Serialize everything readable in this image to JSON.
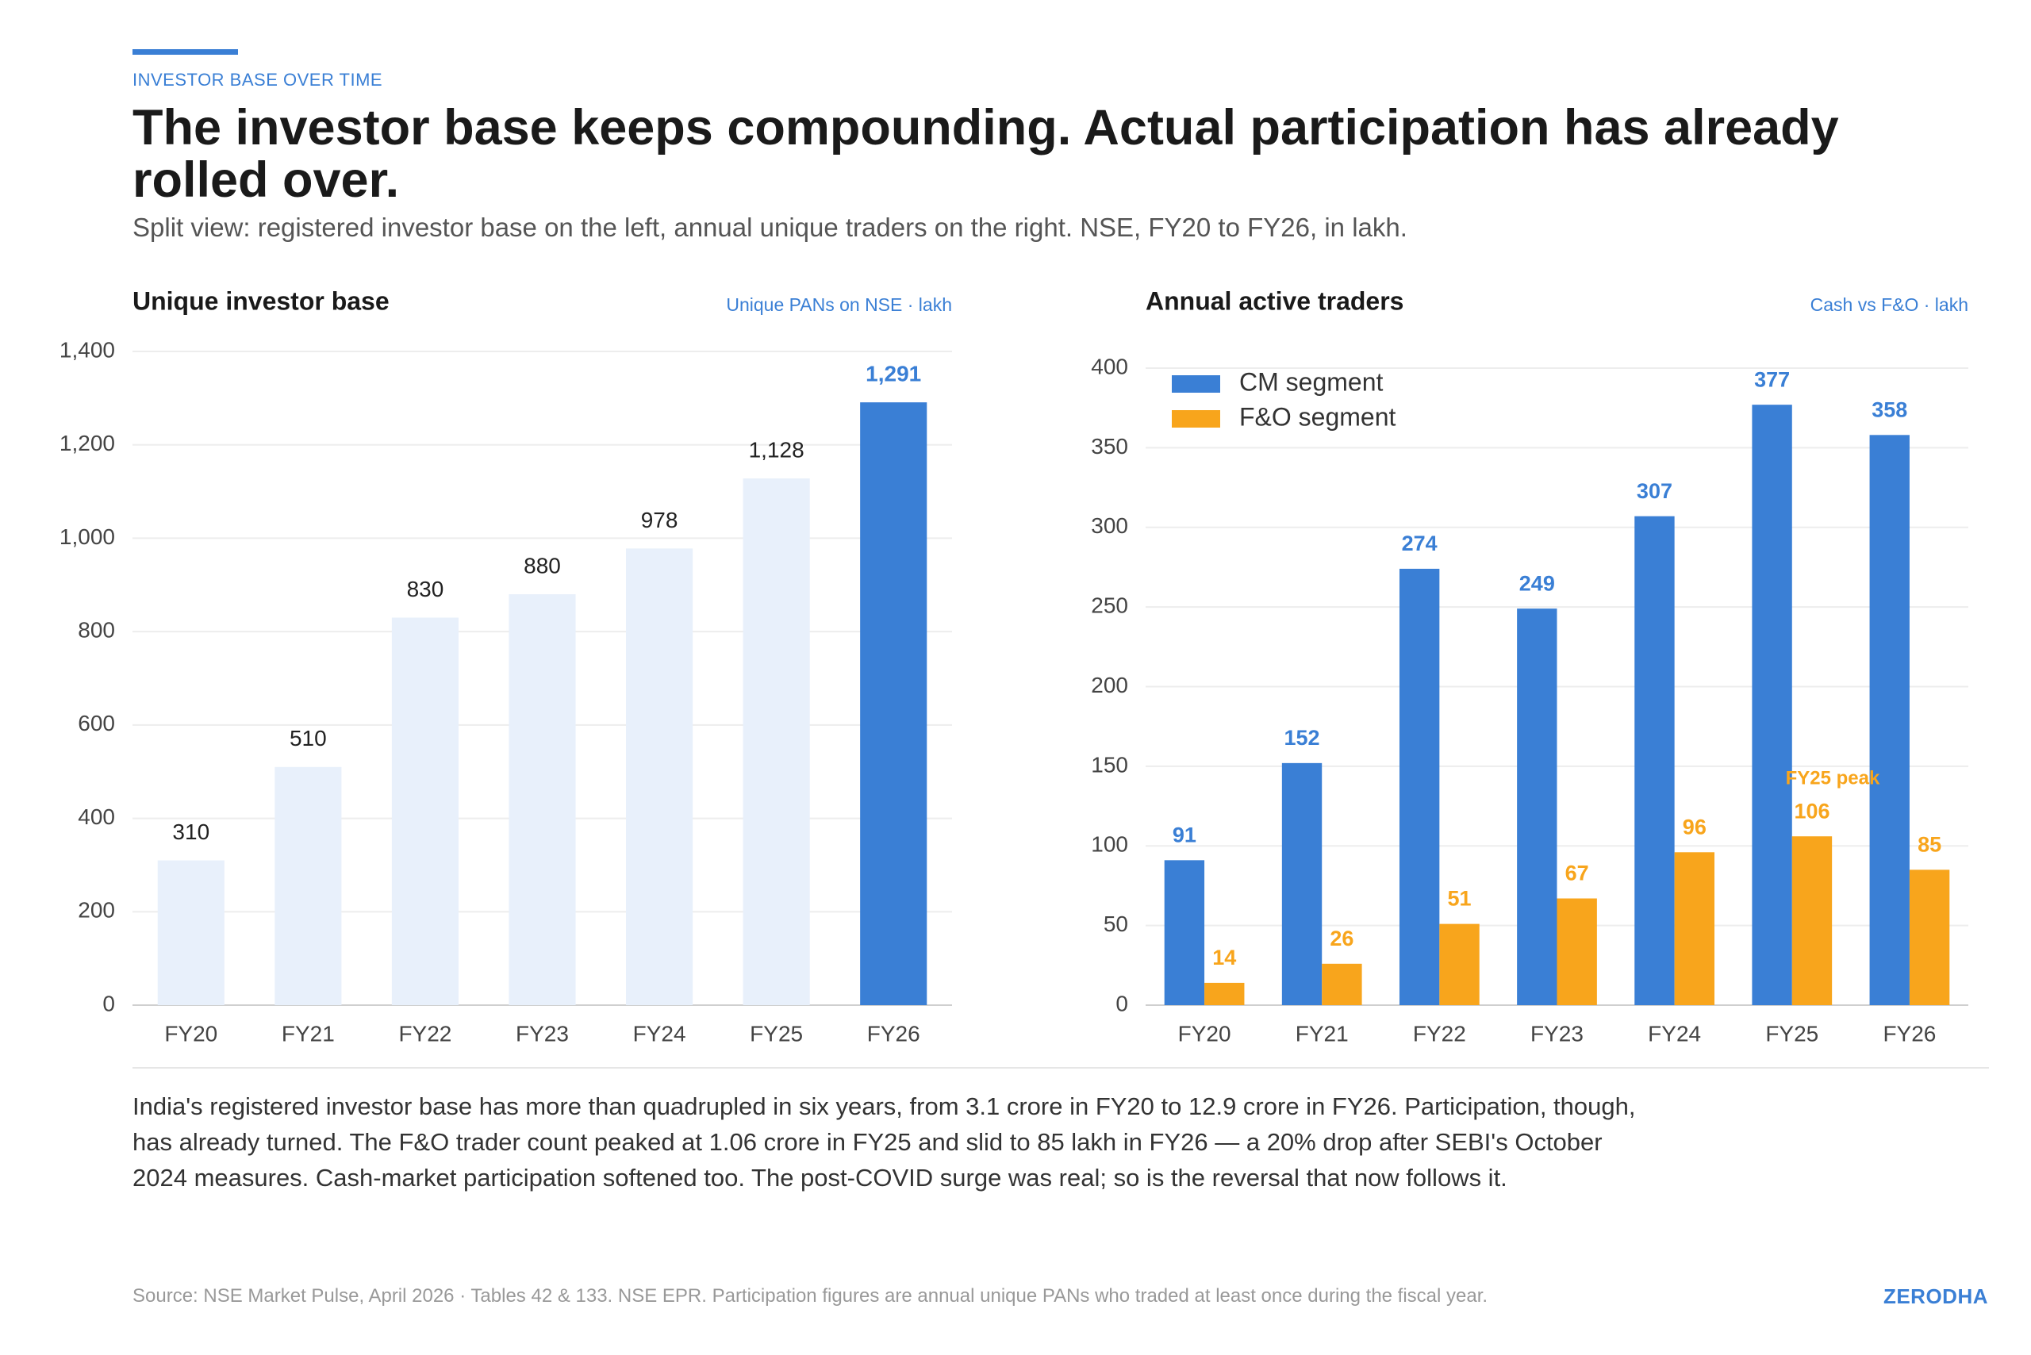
{
  "header": {
    "eyebrow": "INVESTOR BASE OVER TIME",
    "title": "The investor base keeps compounding. Actual participation has already rolled over.",
    "subtitle": "Split view: registered investor base on the left, annual unique traders on the right. NSE, FY20 to FY26, in lakh."
  },
  "chart_data": [
    {
      "type": "bar",
      "title": "Unique investor base",
      "subtitle": "Unique PANs on NSE · lakh",
      "categories": [
        "FY20",
        "FY21",
        "FY22",
        "FY23",
        "FY24",
        "FY25",
        "FY26"
      ],
      "values": [
        310,
        510,
        830,
        880,
        978,
        1128,
        1291
      ],
      "value_labels": [
        "310",
        "510",
        "830",
        "880",
        "978",
        "1,128",
        "1,291"
      ],
      "colors": [
        "#e8f0fb",
        "#e8f0fb",
        "#e8f0fb",
        "#e8f0fb",
        "#e8f0fb",
        "#e8f0fb",
        "#3a7fd5"
      ],
      "ylim": [
        0,
        1400
      ],
      "yticks": [
        0,
        200,
        400,
        600,
        800,
        {
          "value": 1000,
          "label": "1,000"
        },
        {
          "value": 1200,
          "label": "1,200"
        },
        {
          "value": 1400,
          "label": "1,400"
        }
      ],
      "grid": true
    },
    {
      "type": "grouped_bar",
      "title": "Annual active traders",
      "subtitle": "Cash vs F&O · lakh",
      "categories": [
        "FY20",
        "FY21",
        "FY22",
        "FY23",
        "FY24",
        "FY25",
        "FY26"
      ],
      "series": [
        {
          "name": "CM segment",
          "color": "#3a7fd5",
          "values": [
            91,
            152,
            274,
            249,
            307,
            377,
            358
          ]
        },
        {
          "name": "F&O segment",
          "color": "#f8a51c",
          "values": [
            14,
            26,
            51,
            67,
            96,
            106,
            85
          ]
        }
      ],
      "annotations": [
        {
          "text": "FY25 peak",
          "series": 1,
          "category": 5
        }
      ],
      "ylim": [
        0,
        400
      ],
      "yticks": [
        0,
        50,
        100,
        150,
        200,
        250,
        300,
        350,
        400
      ],
      "grid": true,
      "legend": "top-left"
    }
  ],
  "body": "India's registered investor base has more than quadrupled in six years, from 3.1 crore in FY20 to 12.9 crore in FY26. Participation, though, has already turned. The F&O trader count peaked at 1.06 crore in FY25 and slid to 85 lakh in FY26 — a 20% drop after SEBI's October 2024 measures. Cash-market participation softened too. The post-COVID surge was real; so is the reversal that now follows it.",
  "footer": {
    "source": "Source: NSE Market Pulse, April 2026 · Tables 42 & 133. NSE EPR. Participation figures are annual unique PANs who traded at least once during the fiscal year.",
    "brand": "ZERODHA"
  }
}
